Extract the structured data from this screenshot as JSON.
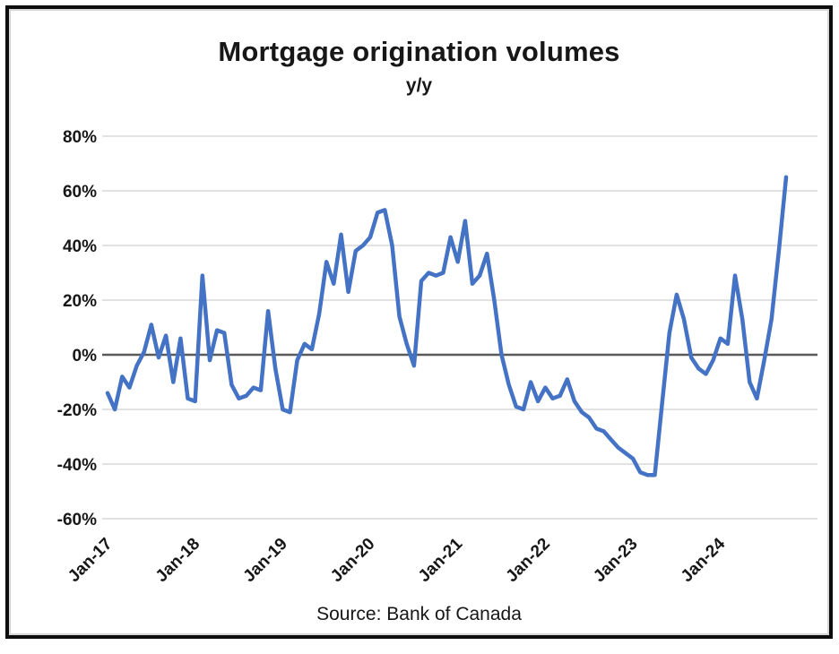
{
  "title": "Mortgage origination volumes",
  "subtitle": "y/y",
  "source": "Source: Bank of Canada",
  "chart_data": {
    "type": "line",
    "title": "Mortgage origination volumes",
    "subtitle": "y/y",
    "source": "Source: Bank of Canada",
    "frequency": "monthly",
    "x_range": [
      "Jan-2017",
      "Oct-2024"
    ],
    "x_tick_labels": [
      "Jan-17",
      "Jan-18",
      "Jan-19",
      "Jan-20",
      "Jan-21",
      "Jan-22",
      "Jan-23",
      "Jan-24"
    ],
    "months_per_tick": 12,
    "y_tick_labels": [
      "80%",
      "60%",
      "40%",
      "20%",
      "0%",
      "-20%",
      "-40%",
      "-60%"
    ],
    "y_tick_values": [
      80,
      60,
      40,
      20,
      0,
      -20,
      -40,
      -60
    ],
    "ylim": [
      -60,
      80
    ],
    "grid": "horizontal",
    "legend": "none",
    "line_color": "#4472C4",
    "zero_line_color": "#595959",
    "grid_color": "#D9D9D9",
    "values": [
      -14,
      -20,
      -8,
      -12,
      -4,
      1,
      11,
      -1,
      7,
      -10,
      6,
      -16,
      -17,
      29,
      -2,
      9,
      8,
      -11,
      -16,
      -15,
      -12,
      -13,
      16,
      -5,
      -20,
      -21,
      -2,
      4,
      2,
      15,
      34,
      26,
      44,
      23,
      38,
      40,
      43,
      52,
      53,
      40,
      14,
      4,
      -4,
      27,
      30,
      29,
      30,
      43,
      34,
      49,
      26,
      29,
      37,
      20,
      0,
      -11,
      -19,
      -20,
      -10,
      -17,
      -12,
      -16,
      -15,
      -9,
      -17,
      -21,
      -23,
      -27,
      -28,
      -31,
      -34,
      -36,
      -38,
      -43,
      -44,
      -44,
      -18,
      8,
      22,
      13,
      -1,
      -5,
      -7,
      -2,
      6,
      4,
      29,
      13,
      -10,
      -16,
      -2,
      13,
      38,
      65
    ]
  }
}
